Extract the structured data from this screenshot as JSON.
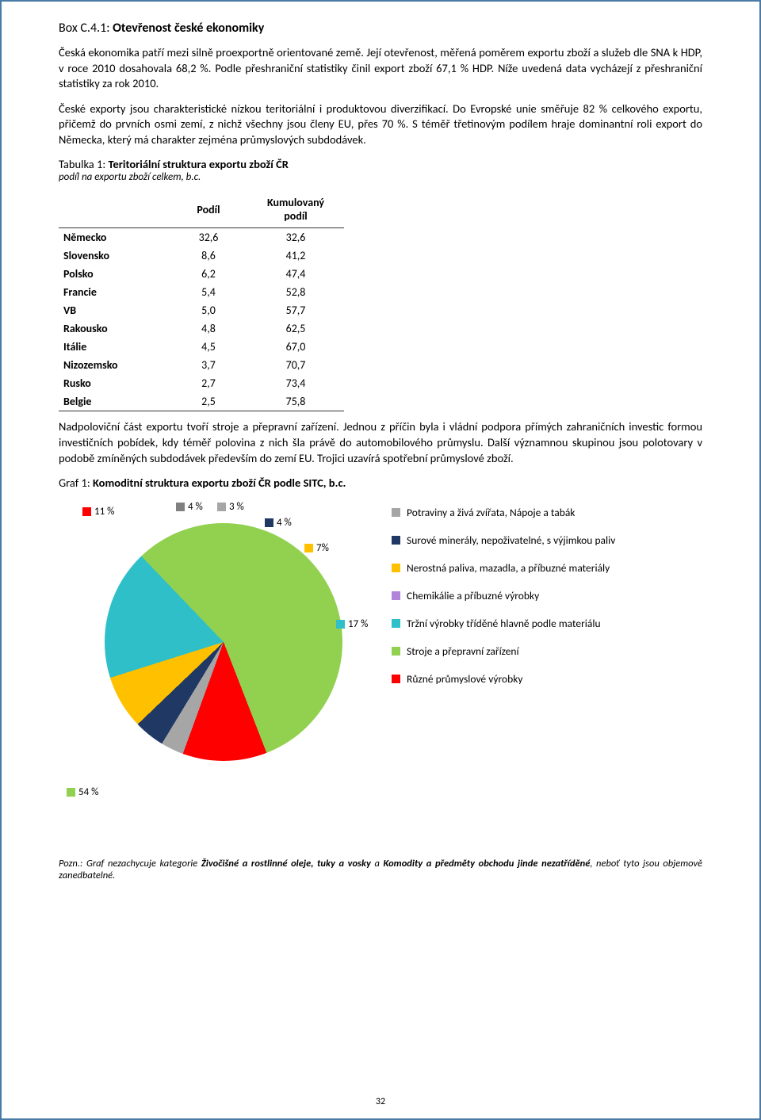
{
  "box_label": "Box C.4.1:",
  "box_title": "Otevřenost české ekonomiky",
  "para1": "Česká ekonomika patří mezi silně proexportně orientované země. Její otevřenost, měřená poměrem exportu zboží a služeb dle SNA k HDP, v roce 2010 dosahovala 68,2 %. Podle přeshraniční statistiky činil export zboží 67,1 % HDP. Níže uvedená data vycházejí z přeshraniční statistiky za rok 2010.",
  "para2": "České exporty jsou charakteristické nízkou teritoriální i produktovou diverzifikací. Do Evropské unie směřuje 82 % celkového exportu, přičemž do prvních osmi zemí, z nichž všechny jsou členy EU, přes 70 %. S téměř třetinovým podílem hraje dominantní roli export do Německa, který má charakter zejména průmyslových subdodávek.",
  "table_title_prefix": "Tabulka 1:",
  "table_title": "Teritoriální struktura exportu zboží ČR",
  "table_sub": "podíl na exportu zboží celkem, b.c.",
  "table_headers": {
    "col1": "",
    "col2": "Podíl",
    "col3": "Kumulovaný podíl"
  },
  "table_rows": [
    {
      "country": "Německo",
      "share": "32,6",
      "cum": "32,6"
    },
    {
      "country": "Slovensko",
      "share": "8,6",
      "cum": "41,2"
    },
    {
      "country": "Polsko",
      "share": "6,2",
      "cum": "47,4"
    },
    {
      "country": "Francie",
      "share": "5,4",
      "cum": "52,8"
    },
    {
      "country": "VB",
      "share": "5,0",
      "cum": "57,7"
    },
    {
      "country": "Rakousko",
      "share": "4,8",
      "cum": "62,5"
    },
    {
      "country": "Itálie",
      "share": "4,5",
      "cum": "67,0"
    },
    {
      "country": "Nizozemsko",
      "share": "3,7",
      "cum": "70,7"
    },
    {
      "country": "Rusko",
      "share": "2,7",
      "cum": "73,4"
    },
    {
      "country": "Belgie",
      "share": "2,5",
      "cum": "75,8"
    }
  ],
  "para3": "Nadpoloviční část exportu tvoří stroje a přepravní zařízení. Jednou z příčin byla i vládní podpora přímých zahraničních investic formou investičních pobídek, kdy téměř polovina z nich šla právě do automobilového průmyslu. Další významnou skupinou jsou polotovary v podobě zmíněných subdodávek především do zemí EU. Trojici uzavírá spotřební průmyslové zboží.",
  "graf_title_prefix": "Graf 1:",
  "graf_title": "Komoditní struktura exportu zboží ČR podle SITC, b.c.",
  "pie": {
    "type": "pie",
    "slices": [
      {
        "label": "Potraviny a živá zvířata, Nápoje a tabák",
        "value": 3,
        "pct": "3 %",
        "color": "#a6a6a6"
      },
      {
        "label": "Surové minerály, nepoživatelné, s výjimkou paliv",
        "value": 4,
        "pct": "4 %",
        "color": "#203864"
      },
      {
        "label": "Nerostná paliva, mazadla, a příbuzné materiály",
        "value": 7,
        "pct": "7%",
        "color": "#ffc000"
      },
      {
        "label": "Chemikálie a příbuzné výrobky",
        "value": 0,
        "pct": "",
        "color": "#b084d9"
      },
      {
        "label": "Tržní výrobky tříděné hlavně podle materiálu",
        "value": 17,
        "pct": "17 %",
        "color": "#2ebfc9"
      },
      {
        "label": "Stroje a přepravní zařízení",
        "value": 54,
        "pct": "54 %",
        "color": "#92d050"
      },
      {
        "label": "Různé průmyslové výrobky",
        "value": 11,
        "pct": "11 %",
        "color": "#ff0000"
      }
    ],
    "extra_label": {
      "pct": "4 %",
      "color": "#808080"
    },
    "background_color": "#ffffff"
  },
  "footnote_prefix": "Pozn.:",
  "footnote": "Graf nezachycuje kategorie Živočišné a rostlinné oleje, tuky a vosky a Komodity a předměty obchodu jinde nezatříděné, neboť tyto jsou objemově zanedbatelné.",
  "page_number": "32"
}
